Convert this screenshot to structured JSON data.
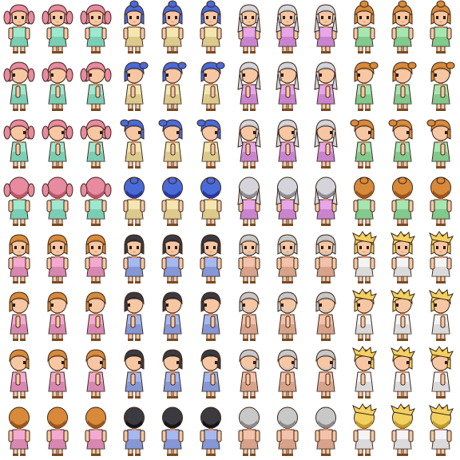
{
  "sheet": {
    "type": "rpg-character-sprite-sheet",
    "columns": 12,
    "rows": 8,
    "frames_per_direction": 3,
    "block_directions": [
      "down",
      "left",
      "right",
      "up"
    ],
    "skin_color": "#f6c7a2",
    "skin_shadow": "#d9926a",
    "outline_color": "#3a2418",
    "sandal_color": "#7a4a22"
  },
  "characters": [
    {
      "id": "pink-twintail-girl",
      "hair": "#e88aa0",
      "hair_shade": "#b8566c",
      "dress": "#9ee8d0",
      "dress_shade": "#5fb89c",
      "style": "twintail"
    },
    {
      "id": "blue-haired-girl",
      "hair": "#4a6ad8",
      "hair_shade": "#28389a",
      "dress": "#f4e6b0",
      "dress_shade": "#c8b270",
      "style": "ponytail"
    },
    {
      "id": "silver-haired-girl",
      "hair": "#d4d4da",
      "hair_shade": "#8c8c96",
      "dress": "#e6a6e8",
      "dress_shade": "#b068b8",
      "style": "long"
    },
    {
      "id": "orange-haired-girl",
      "hair": "#d88a3a",
      "hair_shade": "#9a561c",
      "dress": "#a6e6b0",
      "dress_shade": "#62b070",
      "style": "ponytail"
    },
    {
      "id": "orange-haired-boy",
      "hair": "#d88a3a",
      "hair_shade": "#9a561c",
      "dress": "#f4aad0",
      "dress_shade": "#c06c98",
      "style": "short"
    },
    {
      "id": "black-haired-boy",
      "hair": "#3a3a40",
      "hair_shade": "#16161a",
      "dress": "#a6b8f0",
      "dress_shade": "#6a7cc0",
      "style": "short"
    },
    {
      "id": "elder-man",
      "hair": "#c8c8c8",
      "hair_shade": "#8a8a8a",
      "dress": "#f2c2aa",
      "dress_shade": "#c08a70",
      "style": "elder"
    },
    {
      "id": "blond-boy",
      "hair": "#f2d060",
      "hair_shade": "#c09a2a",
      "dress": "#f4f4f4",
      "dress_shade": "#c4c4c4",
      "style": "spiky"
    }
  ]
}
